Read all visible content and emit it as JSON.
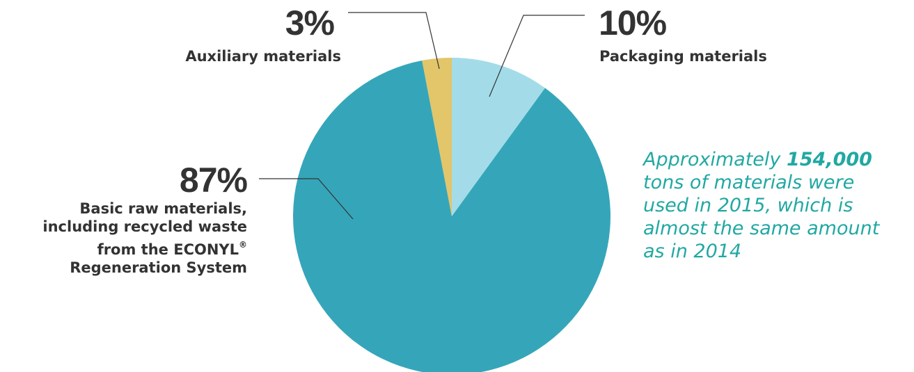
{
  "chart_data": {
    "type": "pie",
    "slices": [
      {
        "label_lines": [
          "Packaging materials"
        ],
        "value": 10,
        "value_text": "10%",
        "color": "#a3dce8"
      },
      {
        "label_lines": [
          "Basic raw materials,",
          "including recycled waste",
          "from the ECONYL",
          "Regeneration System"
        ],
        "value": 87,
        "value_text": "87%",
        "color": "#35a6b9"
      },
      {
        "label_lines": [
          "Auxiliary materials"
        ],
        "value": 3,
        "value_text": "3%",
        "color": "#e3c56a"
      }
    ],
    "trademark": "®"
  },
  "note": {
    "prefix": "Approximately ",
    "highlight": "154,000",
    "lines": [
      "tons of materials were",
      "used in 2015, which is",
      "almost the same amount",
      "as in 2014"
    ],
    "color": "#21a8a3"
  }
}
